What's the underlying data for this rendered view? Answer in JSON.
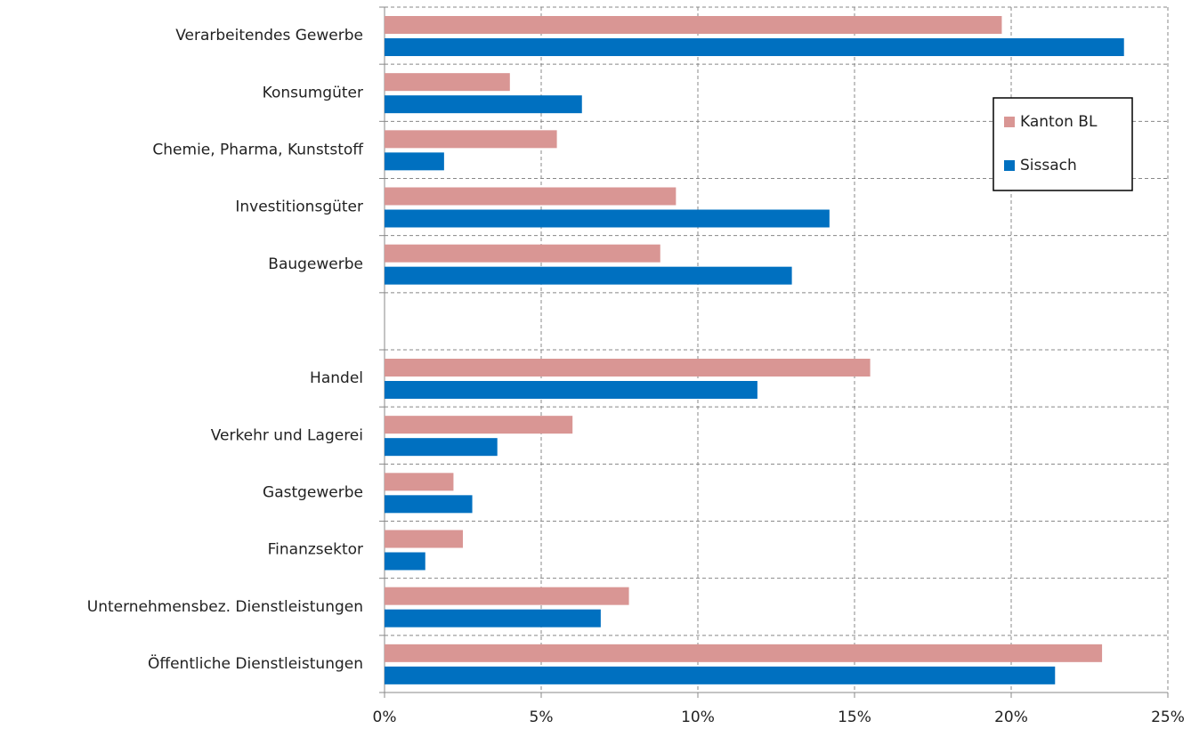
{
  "chart_data": {
    "type": "hbar",
    "categories": [
      "Verarbeitendes Gewerbe",
      "Konsumgüter",
      "Chemie, Pharma, Kunststoff",
      "Investitionsgüter",
      "Baugewerbe",
      null,
      "Handel",
      "Verkehr und Lagerei",
      "Gastgewerbe",
      "Finanzsektor",
      "Unternehmensbez. Dienstleistungen",
      "Öffentliche Dienstleistungen"
    ],
    "series": [
      {
        "name": "Kanton BL",
        "color": "#d99694",
        "values": [
          19.7,
          4.0,
          5.5,
          9.3,
          8.8,
          null,
          15.5,
          6.0,
          2.2,
          2.5,
          7.8,
          22.9
        ]
      },
      {
        "name": "Sissach",
        "color": "#0070c0",
        "values": [
          23.6,
          6.3,
          1.9,
          14.2,
          13.0,
          null,
          11.9,
          3.6,
          2.8,
          1.3,
          6.9,
          21.4
        ]
      }
    ],
    "xlim": [
      0,
      25
    ],
    "xticks": [
      {
        "value": 0,
        "label": "0%"
      },
      {
        "value": 5,
        "label": "5%"
      },
      {
        "value": 10,
        "label": "10%"
      },
      {
        "value": 15,
        "label": "15%"
      },
      {
        "value": 20,
        "label": "20%"
      },
      {
        "value": 25,
        "label": "25%"
      }
    ],
    "grid": true,
    "legend": "upper right"
  }
}
